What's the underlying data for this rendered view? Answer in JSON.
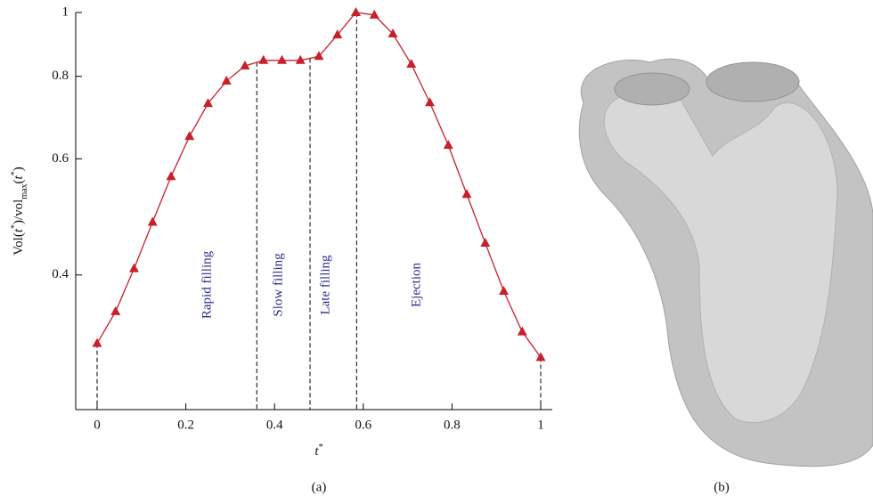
{
  "chart_data": {
    "type": "line",
    "ylabel_parts": [
      "Vol(",
      "t",
      "*",
      ")/vol",
      "max",
      "(",
      "t",
      "*",
      ")"
    ],
    "xlabel_parts": [
      "t",
      "*"
    ],
    "x": [
      0,
      0.0417,
      0.0833,
      0.125,
      0.1667,
      0.2083,
      0.25,
      0.2917,
      0.3333,
      0.375,
      0.4167,
      0.4583,
      0.5,
      0.5417,
      0.5833,
      0.625,
      0.6667,
      0.7083,
      0.75,
      0.7917,
      0.8333,
      0.875,
      0.9167,
      0.9583,
      1
    ],
    "series": [
      {
        "color": "#c8202a",
        "values": [
          0.315,
          0.352,
          0.409,
          0.481,
          0.564,
          0.649,
          0.728,
          0.787,
          0.83,
          0.846,
          0.846,
          0.846,
          0.858,
          0.925,
          1.0,
          0.991,
          0.928,
          0.835,
          0.73,
          0.629,
          0.53,
          0.447,
          0.378,
          0.328,
          0.3
        ]
      }
    ],
    "phase_boundaries": [
      0,
      0.36,
      0.48,
      0.585,
      1
    ],
    "phases": [
      "Rapid filling",
      "Slow filling",
      "Late filling",
      "Ejection"
    ],
    "xlim": [
      0,
      1
    ],
    "ylim": [
      0.25,
      1
    ],
    "log_y": true,
    "xticks": [
      0,
      0.2,
      0.4,
      0.6,
      0.8,
      1
    ],
    "yticks": [
      0.4,
      0.6,
      0.8,
      1
    ],
    "captions": [
      "(a)",
      "(b)"
    ]
  }
}
